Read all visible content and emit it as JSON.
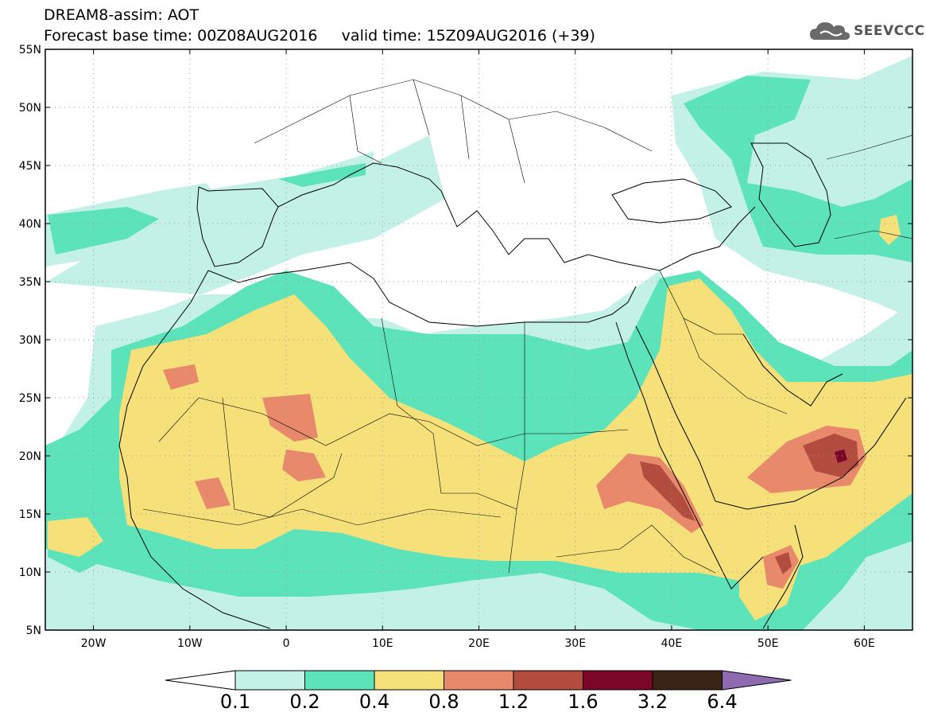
{
  "header": {
    "title_line1": "DREAM8-assim: AOT",
    "title_line2": "Forecast base time: 00Z08AUG2016     valid time: 15Z09AUG2016 (+39)"
  },
  "logo": {
    "text": "SEEVCCC",
    "icon": "cloud-logo-icon"
  },
  "map": {
    "lon_range": [
      -25,
      65
    ],
    "lat_range": [
      5,
      55
    ],
    "lat_ticks": [
      {
        "value": 55,
        "label": "55N"
      },
      {
        "value": 50,
        "label": "50N"
      },
      {
        "value": 45,
        "label": "45N"
      },
      {
        "value": 40,
        "label": "40N"
      },
      {
        "value": 35,
        "label": "35N"
      },
      {
        "value": 30,
        "label": "30N"
      },
      {
        "value": 25,
        "label": "25N"
      },
      {
        "value": 20,
        "label": "20N"
      },
      {
        "value": 15,
        "label": "15N"
      },
      {
        "value": 10,
        "label": "10N"
      },
      {
        "value": 5,
        "label": "5N"
      }
    ],
    "lon_ticks": [
      {
        "value": -20,
        "label": "20W"
      },
      {
        "value": -10,
        "label": "10W"
      },
      {
        "value": 0,
        "label": "0"
      },
      {
        "value": 10,
        "label": "10E"
      },
      {
        "value": 20,
        "label": "20E"
      },
      {
        "value": 30,
        "label": "30E"
      },
      {
        "value": 40,
        "label": "40E"
      },
      {
        "value": 50,
        "label": "50E"
      },
      {
        "value": 60,
        "label": "60E"
      }
    ],
    "grid": "dotted"
  },
  "colorbar": {
    "under_color": "#ffffff",
    "over_color": "#8e6bb0",
    "colors": [
      "#c3f1e7",
      "#5de3b9",
      "#f5e07a",
      "#e8896b",
      "#b14c3f",
      "#7a0628",
      "#3a2416"
    ],
    "labels": [
      "0.1",
      "0.2",
      "0.4",
      "0.8",
      "1.2",
      "1.6",
      "3.2",
      "6.4"
    ]
  }
}
